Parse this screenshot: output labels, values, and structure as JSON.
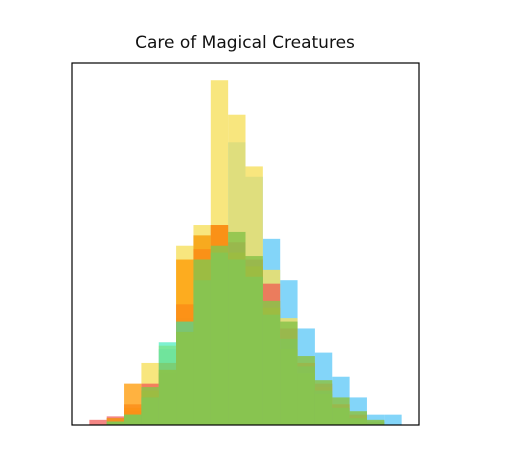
{
  "chart_data": {
    "type": "histogram",
    "title": "Care of Magical Creatures",
    "xlabel": "",
    "ylabel": "",
    "xlim": [
      0,
      20
    ],
    "ylim": [
      0,
      10.5
    ],
    "ticks_visible": false,
    "grid": false,
    "legend": "none",
    "bin_edges": [
      1,
      2,
      3,
      4,
      5,
      6,
      7,
      8,
      9,
      10,
      11,
      12,
      13,
      14,
      15,
      16,
      17,
      18,
      19
    ],
    "series": [
      {
        "color": "#4fc3f7",
        "opacity": 0.7,
        "counts": [
          0,
          0.2,
          0.4,
          1,
          2.2,
          3.1,
          5.5,
          5.8,
          8.2,
          7.2,
          5.4,
          4.2,
          2.8,
          2.1,
          1.4,
          0.8,
          0.3,
          0.3
        ]
      },
      {
        "color": "#f6e05e",
        "opacity": 0.8,
        "counts": [
          0,
          0,
          0.5,
          1.8,
          2.3,
          5.2,
          5.8,
          10,
          9,
          7.5,
          4.5,
          3.1,
          1.8,
          1.1,
          0.6,
          0.25,
          0,
          0
        ]
      },
      {
        "color": "#ef5350",
        "opacity": 0.7,
        "counts": [
          0.15,
          0.25,
          0.6,
          1.2,
          1.5,
          3.5,
          5.1,
          5.8,
          5.3,
          4.8,
          4.1,
          2.8,
          1.8,
          1.2,
          0.6,
          0.3,
          0.1,
          0
        ]
      },
      {
        "color": "#ff9800",
        "opacity": 0.75,
        "counts": [
          0,
          0.2,
          1.2,
          1,
          1.8,
          4.8,
          5.5,
          5.8,
          5,
          4.6,
          3.4,
          2.2,
          1.5,
          0.9,
          0.5,
          0.2,
          0,
          0
        ]
      },
      {
        "color": "#26e8b0",
        "opacity": 0.6,
        "counts": [
          0,
          0.1,
          0.3,
          0.8,
          2.4,
          3,
          4.2,
          5,
          4.8,
          4.3,
          3.2,
          2.5,
          1.7,
          1,
          0.5,
          0.2,
          0.1,
          0
        ]
      },
      {
        "color": "#8bc34a",
        "opacity": 0.85,
        "counts": [
          0,
          0.1,
          0.3,
          1.1,
          1.6,
          2.7,
          4.8,
          5.2,
          5.6,
          4.9,
          3.6,
          3.0,
          2.0,
          1.3,
          0.8,
          0.4,
          0.15,
          0
        ]
      }
    ]
  }
}
